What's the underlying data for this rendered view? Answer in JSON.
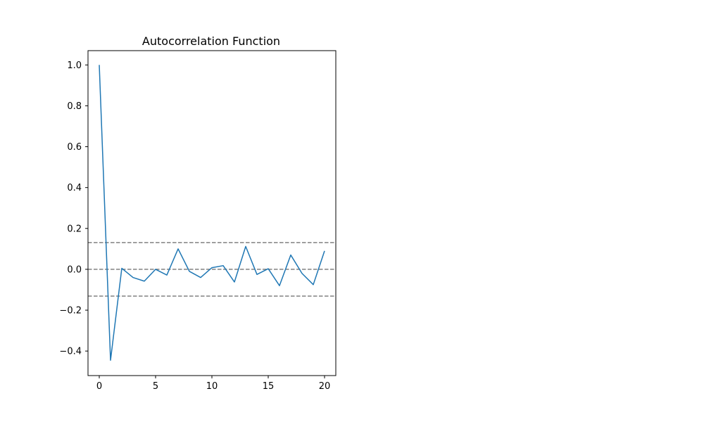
{
  "chart_data": {
    "type": "line",
    "title": "Autocorrelation Function",
    "xlabel": "",
    "ylabel": "",
    "xlim": [
      -1,
      21
    ],
    "ylim": [
      -0.52,
      1.07
    ],
    "xticks": [
      0,
      5,
      10,
      15,
      20
    ],
    "xtick_labels": [
      "0",
      "5",
      "10",
      "15",
      "20"
    ],
    "yticks": [
      -0.4,
      -0.2,
      0.0,
      0.2,
      0.4,
      0.6,
      0.8,
      1.0
    ],
    "ytick_labels": [
      "−0.4",
      "−0.2",
      "0.0",
      "0.2",
      "0.4",
      "0.6",
      "0.8",
      "1.0"
    ],
    "grid": false,
    "series": [
      {
        "x": [
          0,
          1,
          2,
          3,
          4,
          5,
          6,
          7,
          8,
          9,
          10,
          11,
          12,
          13,
          14,
          15,
          16,
          17,
          18,
          19,
          20
        ],
        "values": [
          1.0,
          -0.445,
          0.005,
          -0.04,
          -0.058,
          0.0,
          -0.028,
          0.1,
          -0.01,
          -0.04,
          0.008,
          0.018,
          -0.062,
          0.112,
          -0.025,
          0.003,
          -0.08,
          0.07,
          -0.02,
          -0.075,
          0.09
        ],
        "color": "#1f77b4"
      }
    ],
    "reference_lines": [
      {
        "y": 0.131,
        "color": "#808080",
        "style": "dashed"
      },
      {
        "y": 0.0,
        "color": "#808080",
        "style": "dashed"
      },
      {
        "y": -0.131,
        "color": "#808080",
        "style": "dashed"
      }
    ]
  }
}
